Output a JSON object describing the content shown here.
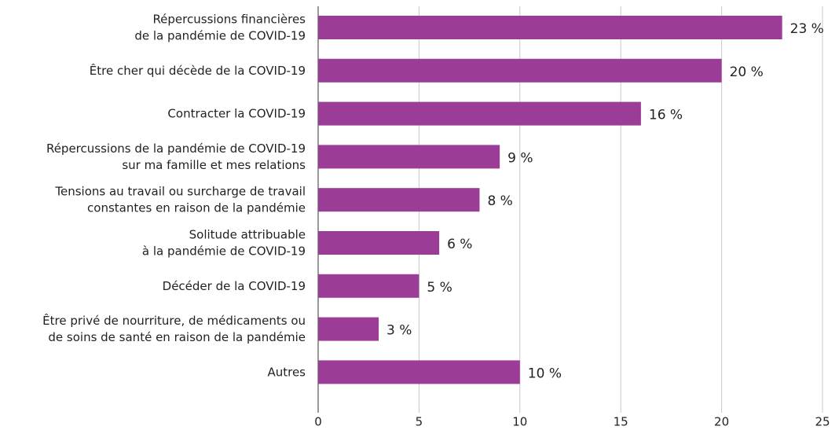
{
  "chart_data": {
    "type": "bar",
    "orientation": "horizontal",
    "categories": [
      [
        "Répercussions financières",
        "de la pandémie de COVID-19"
      ],
      [
        "Être cher qui décède de la COVID-19"
      ],
      [
        "Contracter la COVID-19"
      ],
      [
        "Répercussions de la pandémie de COVID-19",
        "sur ma famille et mes relations"
      ],
      [
        "Tensions au travail ou surcharge de travail",
        "constantes en raison de la pandémie"
      ],
      [
        "Solitude attribuable",
        "à la pandémie de COVID-19"
      ],
      [
        "Décéder de la COVID-19"
      ],
      [
        "Être privé de nourriture, de médicaments ou",
        "de soins de santé en raison de la pandémie"
      ],
      [
        "Autres"
      ]
    ],
    "values": [
      23,
      20,
      16,
      9,
      8,
      6,
      5,
      3,
      10
    ],
    "value_labels": [
      "23 %",
      "20 %",
      "16 %",
      "9 %",
      "8 %",
      "6 %",
      "5 %",
      "3 %",
      "10 %"
    ],
    "color": "#9b3c96",
    "xlim": [
      0,
      25
    ],
    "xticks": [
      0,
      5,
      10,
      15,
      20,
      25
    ],
    "grid": true
  }
}
